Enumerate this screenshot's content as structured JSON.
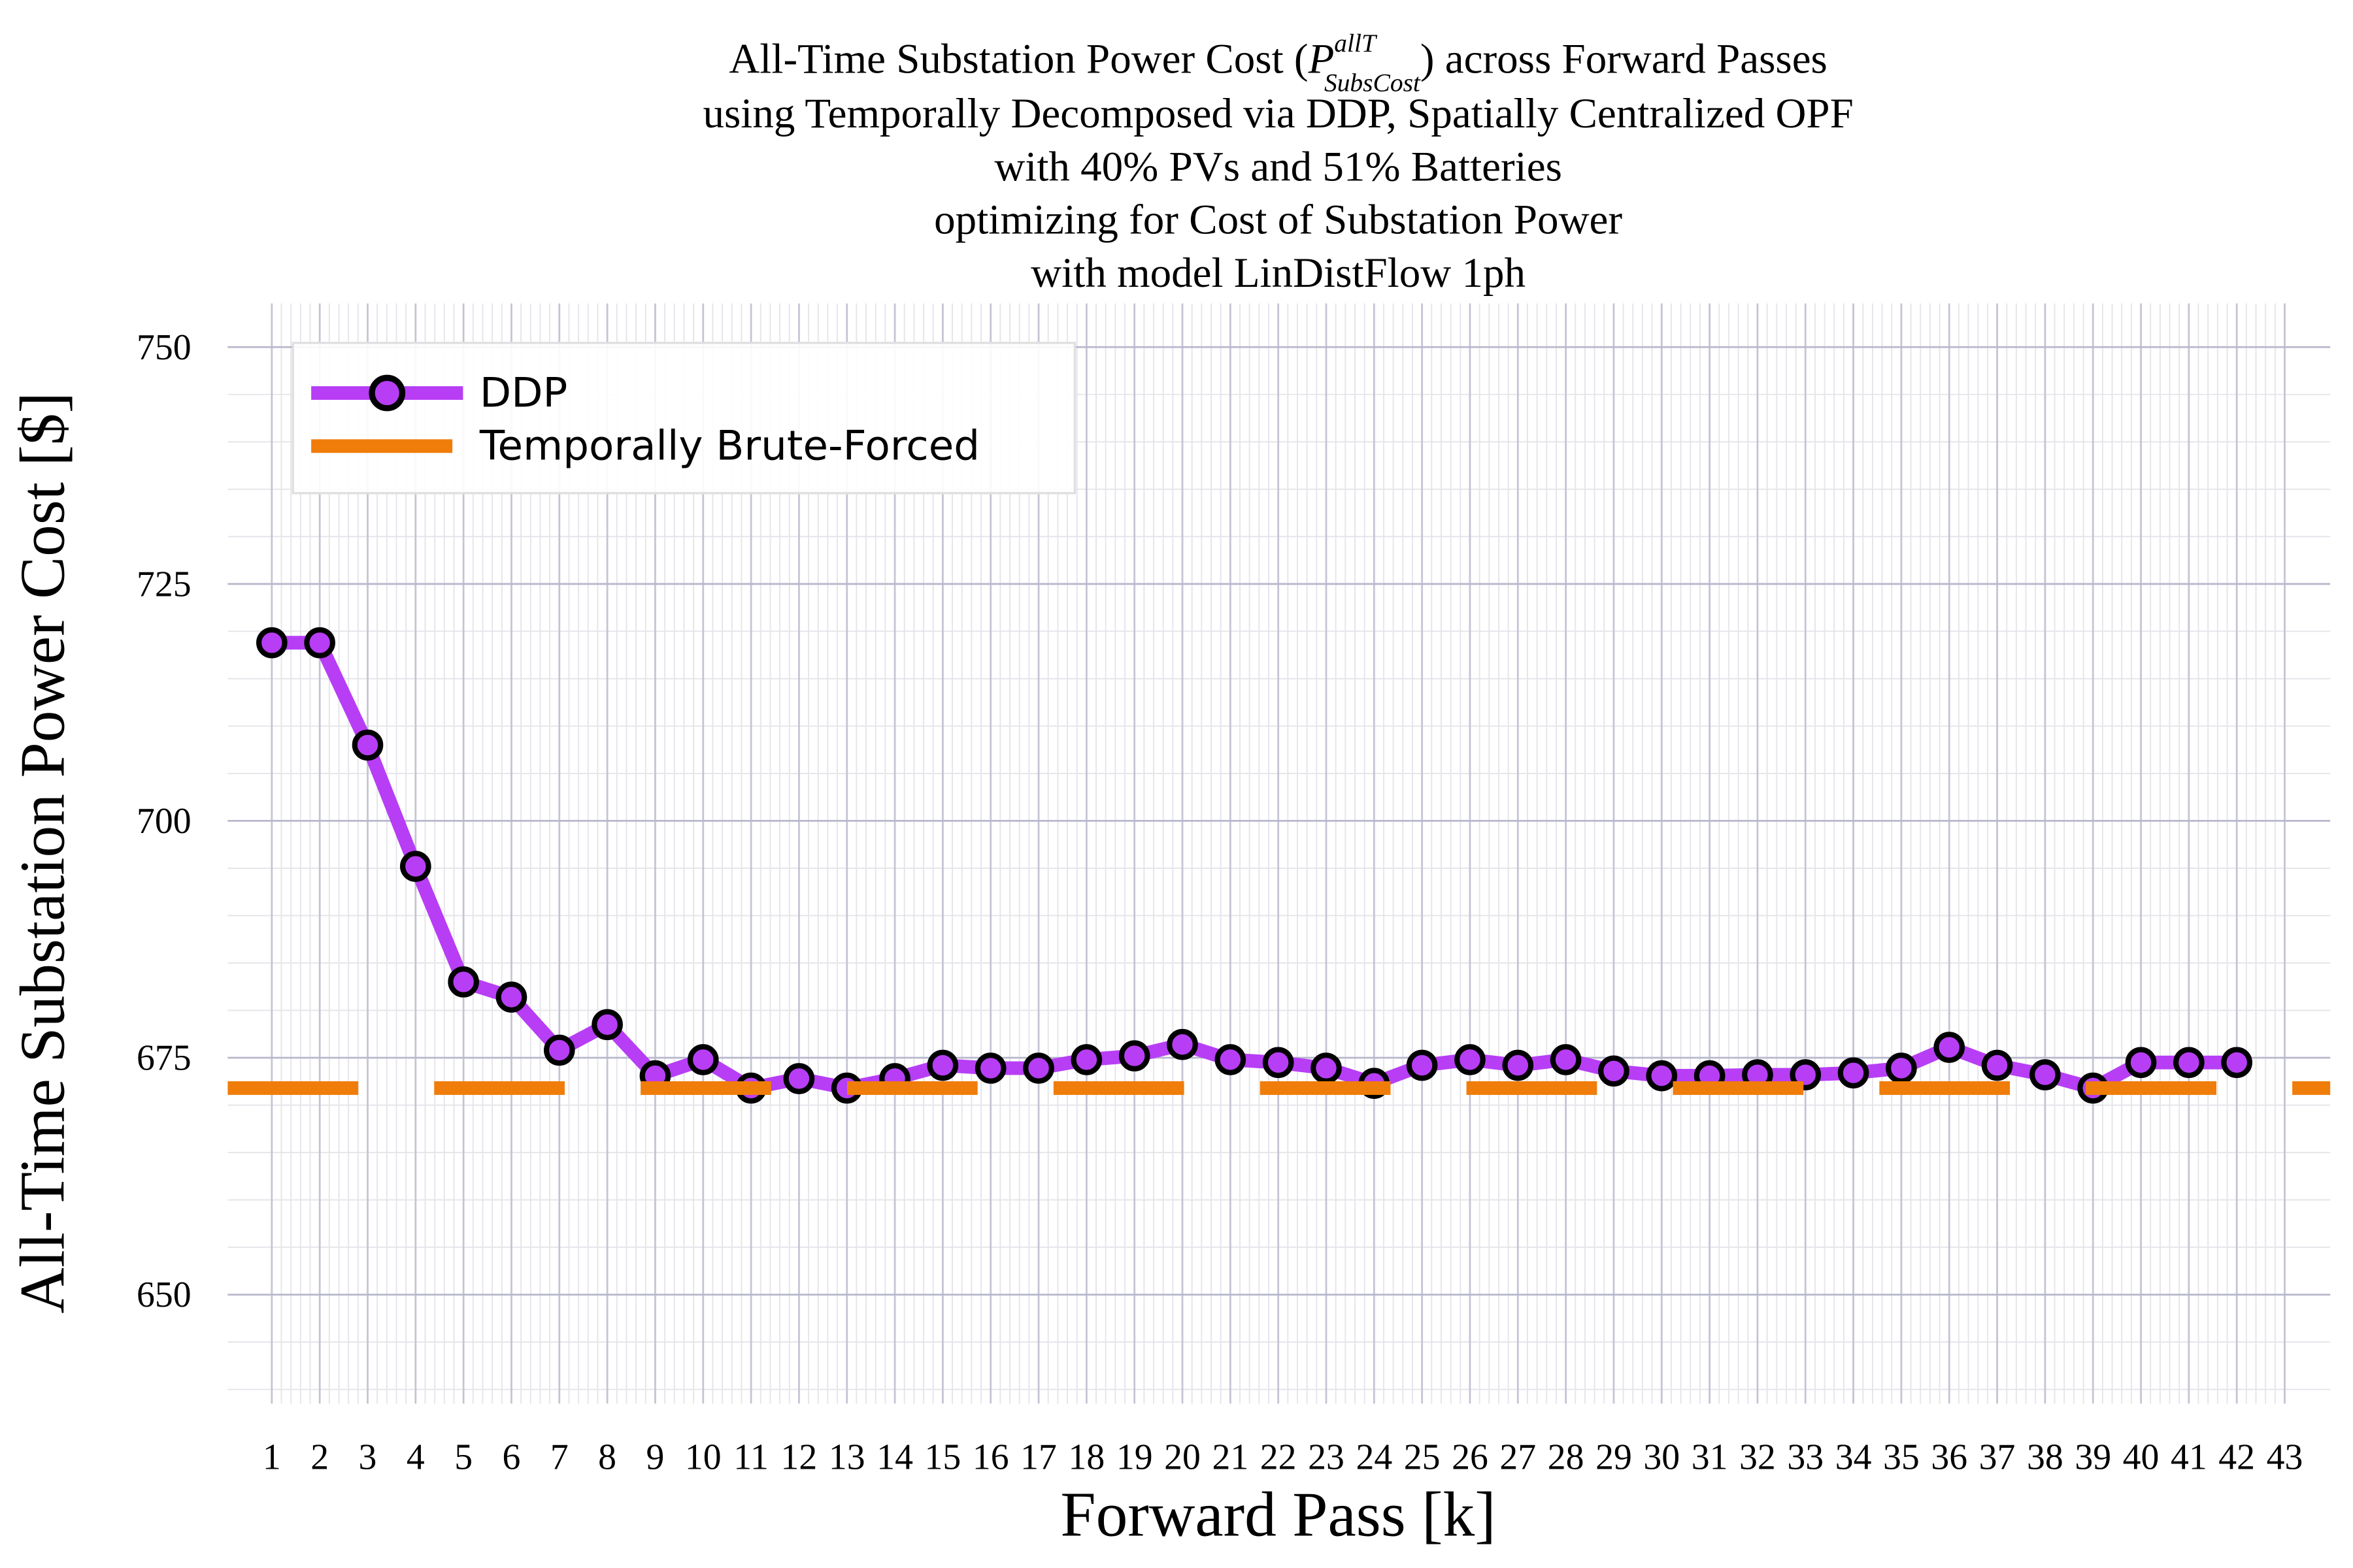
{
  "chart_data": {
    "type": "line",
    "title_line1": {
      "before": "All-Time Substation Power Cost (",
      "symbol": "P",
      "sup": "allT",
      "sub": "SubsCost",
      "after": ") across Forward Passes"
    },
    "title_lines": [
      "using Temporally Decomposed via DDP, Spatially Centralized OPF",
      "with 40% PVs and 51% Batteries",
      "optimizing for Cost of Substation Power",
      "with model LinDistFlow 1ph"
    ],
    "xlabel": "Forward Pass [k]",
    "ylabel": "All-Time Substation Power Cost [$]",
    "x": [
      1,
      2,
      3,
      4,
      5,
      6,
      7,
      8,
      9,
      10,
      11,
      12,
      13,
      14,
      15,
      16,
      17,
      18,
      19,
      20,
      21,
      22,
      23,
      24,
      25,
      26,
      27,
      28,
      29,
      30,
      31,
      32,
      33,
      34,
      35,
      36,
      37,
      38,
      39,
      40,
      41,
      42
    ],
    "series": [
      {
        "name": "DDP",
        "color": "#b73ef5",
        "values": [
          718.8,
          718.8,
          708.0,
          695.2,
          683.0,
          681.4,
          675.8,
          678.5,
          673.1,
          674.8,
          671.8,
          672.8,
          671.8,
          672.8,
          674.2,
          673.9,
          673.9,
          674.8,
          675.2,
          676.4,
          674.8,
          674.5,
          673.9,
          672.3,
          674.2,
          674.8,
          674.2,
          674.8,
          673.6,
          673.1,
          673.1,
          673.2,
          673.2,
          673.4,
          673.9,
          676.1,
          674.2,
          673.2,
          671.8,
          674.5,
          674.5,
          674.5
        ]
      },
      {
        "name": "Temporally Brute-Forced",
        "color": "#f07d0a",
        "value": 671.8
      }
    ],
    "xlim": [
      0.08,
      43.95
    ],
    "xticks": [
      1,
      2,
      3,
      4,
      5,
      6,
      7,
      8,
      9,
      10,
      11,
      12,
      13,
      14,
      15,
      16,
      17,
      18,
      19,
      20,
      21,
      22,
      23,
      24,
      25,
      26,
      27,
      28,
      29,
      30,
      31,
      32,
      33,
      34,
      35,
      36,
      37,
      38,
      39,
      40,
      41,
      42,
      43
    ],
    "ylim": [
      638.5,
      754.6
    ],
    "yticks": [
      650,
      675,
      700,
      725,
      750
    ],
    "grid": true,
    "minor_grid": true,
    "legend": "top-left"
  }
}
